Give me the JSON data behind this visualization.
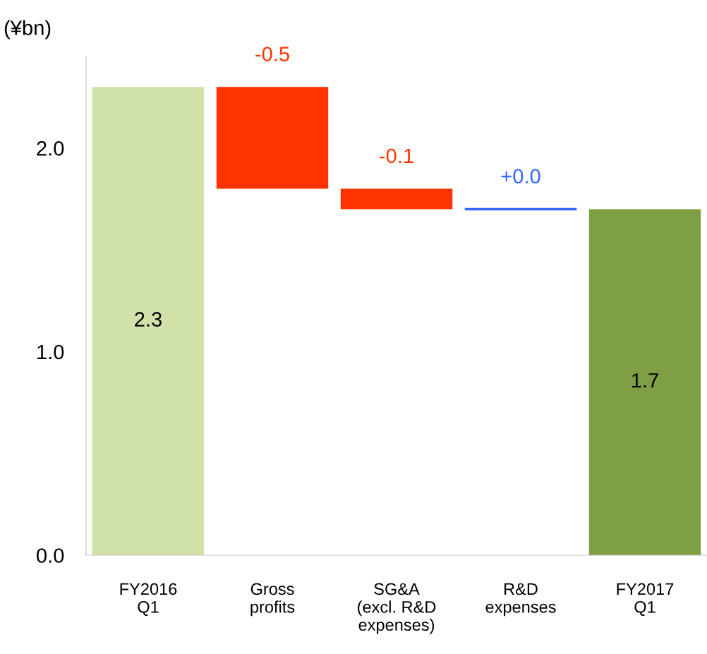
{
  "chart_data": {
    "type": "bar",
    "ylabel": "(¥bn)",
    "categories": [
      "FY2016\nQ1",
      "Gross\nprofits",
      "SG&A\n(excl. R&D\nexpenses)",
      "R&D\nexpenses",
      "FY2017\nQ1"
    ],
    "values": [
      2.3,
      -0.5,
      -0.1,
      0.0,
      1.7
    ],
    "base": [
      0,
      2.3,
      1.8,
      1.7,
      0
    ],
    "colors": [
      "#d0e2a8",
      "#ff3300",
      "#ff3300",
      "#3366ff",
      "#7f9f45"
    ],
    "value_labels": [
      "2.3",
      "-0.5",
      "-0.1",
      "+0.0",
      "1.7"
    ],
    "ylim": [
      0,
      2.45
    ],
    "yticks": [
      {
        "value": 0,
        "label": "0.0"
      },
      {
        "value": 1,
        "label": "1.0"
      },
      {
        "value": 2,
        "label": "2.0"
      }
    ],
    "grid": false,
    "legend": false
  }
}
